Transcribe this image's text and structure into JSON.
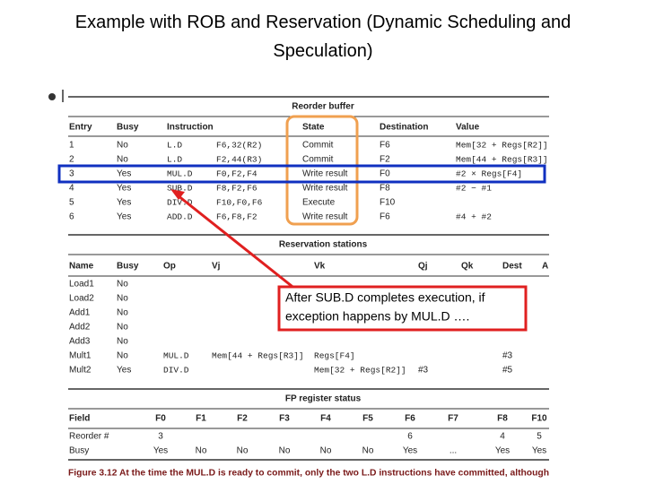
{
  "title": "Example with ROB and Reservation (Dynamic Scheduling and Speculation)",
  "rob": {
    "title": "Reorder buffer",
    "headers": [
      "Entry",
      "Busy",
      "Instruction",
      "State",
      "Destination",
      "Value"
    ],
    "rows": [
      {
        "entry": "1",
        "busy": "No",
        "op": "L.D",
        "args": "F6,32(R2)",
        "state": "Commit",
        "dest": "F6",
        "value": "Mem[32 + Regs[R2]]"
      },
      {
        "entry": "2",
        "busy": "No",
        "op": "L.D",
        "args": "F2,44(R3)",
        "state": "Commit",
        "dest": "F2",
        "value": "Mem[44 + Regs[R3]]"
      },
      {
        "entry": "3",
        "busy": "Yes",
        "op": "MUL.D",
        "args": "F0,F2,F4",
        "state": "Write result",
        "dest": "F0",
        "value": "#2 × Regs[F4]"
      },
      {
        "entry": "4",
        "busy": "Yes",
        "op": "SUB.D",
        "args": "F8,F2,F6",
        "state": "Write result",
        "dest": "F8",
        "value": "#2 − #1"
      },
      {
        "entry": "5",
        "busy": "Yes",
        "op": "DIV.D",
        "args": "F10,F0,F6",
        "state": "Execute",
        "dest": "F10"
      },
      {
        "entry": "6",
        "busy": "Yes",
        "op": "ADD.D",
        "args": "F6,F8,F2",
        "state": "Write result",
        "dest": "F6",
        "value": "#4 + #2"
      }
    ]
  },
  "rs": {
    "title": "Reservation stations",
    "headers": [
      "Name",
      "Busy",
      "Op",
      "Vj",
      "Vk",
      "Qj",
      "Qk",
      "Dest",
      "A"
    ],
    "rows": [
      {
        "name": "Load1",
        "busy": "No"
      },
      {
        "name": "Load2",
        "busy": "No"
      },
      {
        "name": "Add1",
        "busy": "No"
      },
      {
        "name": "Add2",
        "busy": "No"
      },
      {
        "name": "Add3",
        "busy": "No"
      },
      {
        "name": "Mult1",
        "busy": "No",
        "op": "MUL.D",
        "vj": "Mem[44 + Regs[R3]]",
        "vk": "Regs[F4]",
        "dest": "#3"
      },
      {
        "name": "Mult2",
        "busy": "Yes",
        "op": "DIV.D",
        "vk": "Mem[32 + Regs[R2]]",
        "qj": "#3",
        "dest": "#5"
      }
    ]
  },
  "fp": {
    "title": "FP register status",
    "headers": [
      "Field",
      "F0",
      "F1",
      "F2",
      "F3",
      "F4",
      "F5",
      "F6",
      "F7",
      "F8",
      "F10"
    ],
    "reorder": {
      "label": "Reorder #",
      "cells": {
        "1": "3",
        "7": "6",
        "9": "4",
        "10": "5"
      }
    },
    "busy": {
      "label": "Busy",
      "cells": {
        "1": "Yes",
        "2": "No",
        "3": "No",
        "4": "No",
        "5": "No",
        "6": "No",
        "7": "Yes",
        "8": "...",
        "9": "Yes",
        "10": "Yes"
      }
    }
  },
  "callout": [
    "After SUB.D completes execution, if",
    "exception happens by MUL.D …."
  ],
  "caption": "Figure 3.12 At the time the MUL.D is ready to commit, only the two L.D instructions have committed, although"
}
